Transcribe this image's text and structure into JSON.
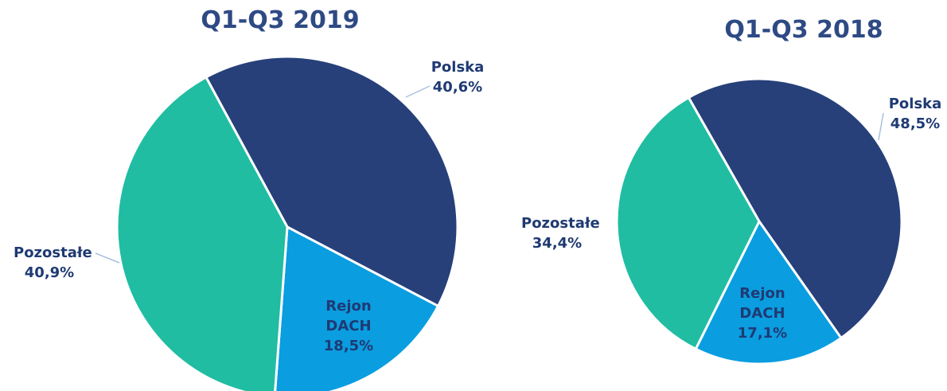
{
  "chart_data": [
    {
      "type": "pie",
      "title": "Q1-Q3 2019",
      "categories": [
        "Polska",
        "Rejon DACH",
        "Pozostałe"
      ],
      "values": [
        40.6,
        18.5,
        40.9
      ],
      "value_labels": [
        "40,6%",
        "18,5%",
        "40,9%"
      ],
      "colors": [
        "#27407a",
        "#0a9de0",
        "#20bda3"
      ]
    },
    {
      "type": "pie",
      "title": "Q1-Q3 2018",
      "categories": [
        "Polska",
        "Rejon DACH",
        "Pozostałe"
      ],
      "values": [
        48.5,
        17.1,
        34.4
      ],
      "value_labels": [
        "48,5%",
        "17,1%",
        "34,4%"
      ],
      "colors": [
        "#27407a",
        "#0a9de0",
        "#20bda3"
      ]
    }
  ]
}
